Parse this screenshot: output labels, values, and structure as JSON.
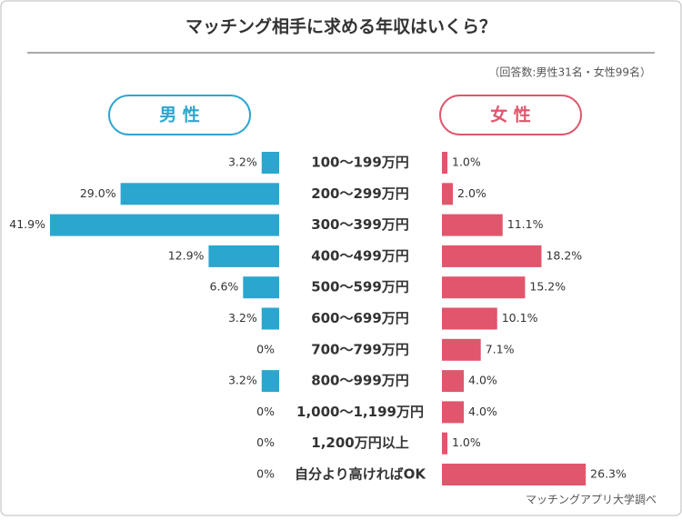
{
  "chart_data": {
    "type": "butterfly-bar",
    "title": "マッチング相手に求める年収はいくら？",
    "subtitle": "（回答数:男性31名・女性99名）",
    "source": "マッチングアプリ大学調べ",
    "categories": [
      "100〜199万円",
      "200〜299万円",
      "300〜399万円",
      "400〜499万円",
      "500〜599万円",
      "600〜699万円",
      "700〜799万円",
      "800〜999万円",
      "1,000〜1,199万円",
      "1,200万円以上",
      "自分より高ければOK"
    ],
    "series": [
      {
        "name": "男 性",
        "color": "#2ba6cf",
        "side": "left",
        "values": [
          3.2,
          29.0,
          41.9,
          12.9,
          6.6,
          3.2,
          0,
          3.2,
          0,
          0,
          0
        ],
        "value_labels": [
          "3.2%",
          "29.0%",
          "41.9%",
          "12.9%",
          "6.6%",
          "3.2%",
          "0%",
          "3.2%",
          "0%",
          "0%",
          "0%"
        ]
      },
      {
        "name": "女 性",
        "color": "#e0566c",
        "side": "right",
        "values": [
          1.0,
          2.0,
          11.1,
          18.2,
          15.2,
          10.1,
          7.1,
          4.0,
          4.0,
          1.0,
          26.3
        ],
        "value_labels": [
          "1.0%",
          "2.0%",
          "11.1%",
          "18.2%",
          "15.2%",
          "10.1%",
          "7.1%",
          "4.0%",
          "4.0%",
          "1.0%",
          "26.3%"
        ]
      }
    ]
  }
}
